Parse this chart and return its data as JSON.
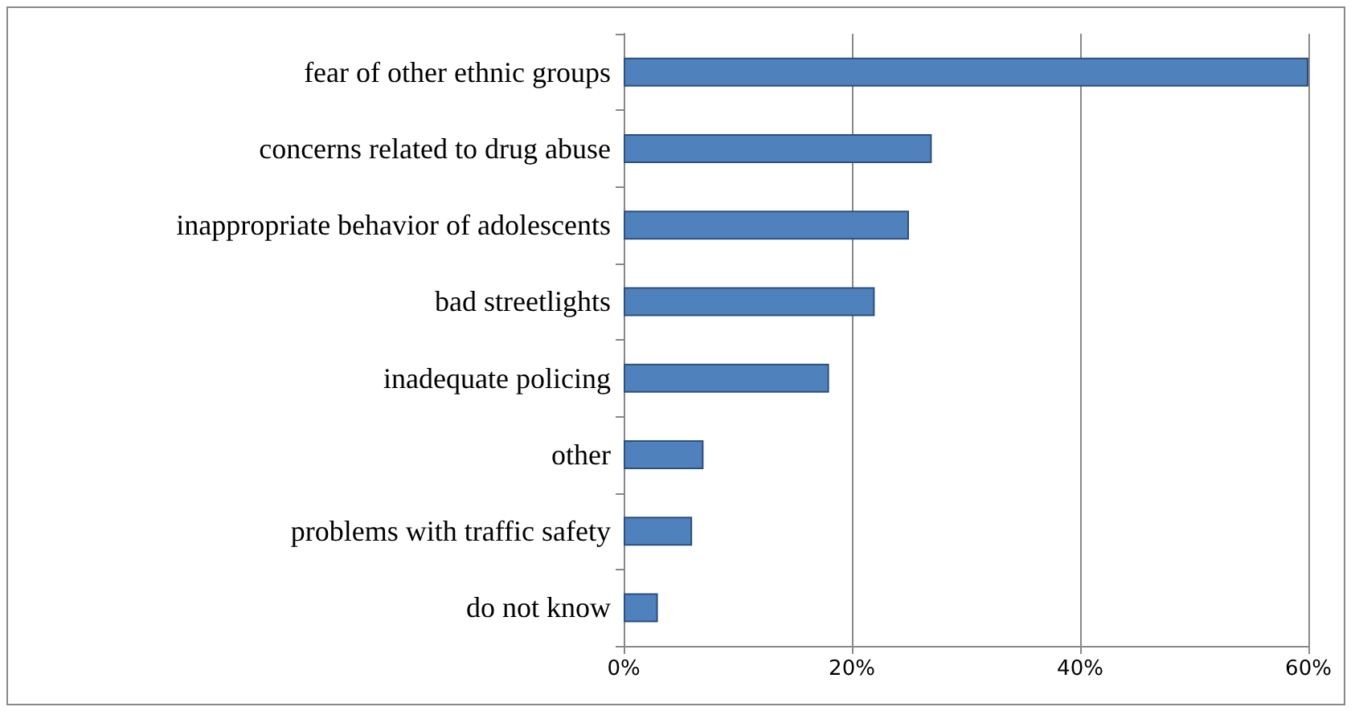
{
  "chart_data": {
    "type": "bar",
    "orientation": "horizontal",
    "categories": [
      "fear of other ethnic groups",
      "concerns related to drug abuse",
      "inappropriate behavior of adolescents",
      "bad streetlights",
      "inadequate policing",
      "other",
      "problems with traffic safety",
      "do not know"
    ],
    "values": [
      60,
      27,
      25,
      22,
      18,
      7,
      6,
      3
    ],
    "color": "#4f81bd",
    "xlim": [
      0,
      60
    ],
    "xticks": [
      {
        "value": 0,
        "label": "0%"
      },
      {
        "value": 20,
        "label": "20%"
      },
      {
        "value": 40,
        "label": "40%"
      },
      {
        "value": 60,
        "label": "60%"
      }
    ],
    "grid": "x"
  }
}
